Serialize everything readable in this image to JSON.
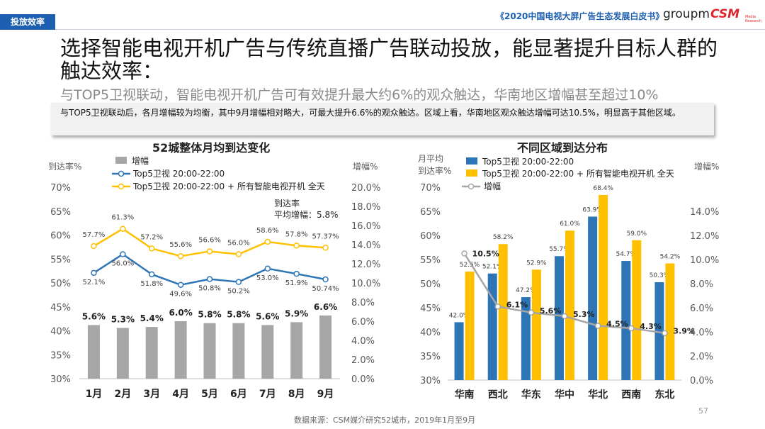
{
  "header": {
    "section_tag": "投放效率",
    "report_title": "《2020中国电视大屏广告生态发展白皮书》",
    "logo_groupm": "groupm",
    "logo_csm": "CSM",
    "logo_csm_sub": "Media Research"
  },
  "title": "选择智能电视开机广告与传统直播广告联动投放，能显著提升目标人群的触达效率：",
  "subtitle": "与TOP5卫视联动，智能电视开机广告可有效提升最大约6%的观众触达，华南地区增幅甚至超过10%",
  "callout": "与TOP5卫视联动后，各月增幅较为均衡，其中9月增幅相对略大，可最大提升6.6%的观众触达。区域上看，华南地区观众触达增幅可达10.5%，明显高于其他区域。",
  "footer": {
    "source": "数据来源：CSM媒介研究52城市，2019年1月至9月",
    "page": "57"
  },
  "colors": {
    "gray": "#a6a6a6",
    "blue": "#2e75b6",
    "gold": "#ffc000",
    "brand": "#1d5fb0"
  },
  "chart_data": [
    {
      "type": "bar+line",
      "title": "52城整体月均到达变化",
      "ylabel_left": "到达率%",
      "ylabel_right": "增幅%",
      "ylim_left": [
        30,
        70
      ],
      "yticks_left": [
        "30%",
        "35%",
        "40%",
        "45%",
        "50%",
        "55%",
        "60%",
        "65%",
        "70%"
      ],
      "ylim_right": [
        0,
        20
      ],
      "yticks_right": [
        "0.0%",
        "2.0%",
        "4.0%",
        "6.0%",
        "8.0%",
        "10.0%",
        "12.0%",
        "14.0%",
        "16.0%",
        "18.0%",
        "20.0%"
      ],
      "categories": [
        "1月",
        "2月",
        "3月",
        "4月",
        "5月",
        "6月",
        "7月",
        "8月",
        "9月"
      ],
      "legend": [
        "增幅",
        "Top5卫视 20:00-22:00",
        "Top5卫视 20:00-22:00 + 所有智能电视开机 全天"
      ],
      "bar_series": {
        "name": "增幅",
        "values": [
          5.6,
          5.3,
          5.4,
          6.0,
          5.8,
          5.8,
          5.6,
          5.9,
          6.6
        ],
        "labels": [
          "5.6%",
          "5.3%",
          "5.4%",
          "6.0%",
          "5.8%",
          "5.8%",
          "5.6%",
          "5.9%",
          "6.6%"
        ]
      },
      "line_series": [
        {
          "name": "Top5卫视 20:00-22:00",
          "values": [
            52.1,
            56.0,
            51.8,
            49.6,
            50.8,
            50.2,
            53.0,
            51.9,
            50.74
          ],
          "labels": [
            "52.1%",
            "56.0%",
            "51.8%",
            "49.6%",
            "50.8%",
            "50.2%",
            "53.0%",
            "51.9%",
            "50.74%"
          ]
        },
        {
          "name": "Top5卫视 20:00-22:00 + 所有智能电视开机 全天",
          "values": [
            57.7,
            61.3,
            57.2,
            55.6,
            56.6,
            56.0,
            58.6,
            57.8,
            57.37
          ],
          "labels": [
            "57.7%",
            "61.3%",
            "57.2%",
            "55.6%",
            "56.6%",
            "56.0%",
            "58.6%",
            "57.8%",
            "57.37%"
          ]
        }
      ],
      "annotation": [
        "到达率",
        "平均增幅：5.8%"
      ]
    },
    {
      "type": "bar+line",
      "title": "不同区域到达分布",
      "ylabel_left": "月平均\n到达率%",
      "ylabel_left_lines": [
        "月平均",
        "到达率%"
      ],
      "ylabel_right": "增幅%",
      "ylim_left": [
        30,
        70
      ],
      "yticks_left": [
        "30%",
        "35%",
        "40%",
        "45%",
        "50%",
        "55%",
        "60%",
        "65%",
        "70%"
      ],
      "ylim_right": [
        0,
        16
      ],
      "yticks_right": [
        "0.0%",
        "2.0%",
        "4.0%",
        "6.0%",
        "8.0%",
        "10.0%",
        "12.0%",
        "14.0%"
      ],
      "categories": [
        "华南",
        "西北",
        "华东",
        "华中",
        "华北",
        "西南",
        "东北"
      ],
      "legend": [
        "Top5卫视 20:00-22:00",
        "Top5卫视 20:00-22:00 + 所有智能电视开机 全天",
        "增幅"
      ],
      "bar_series": [
        {
          "name": "Top5卫视 20:00-22:00",
          "values": [
            42.0,
            52.1,
            47.2,
            55.7,
            63.9,
            54.7,
            50.3
          ],
          "labels": [
            "42.0%",
            "52.1%",
            "47.2%",
            "55.7%",
            "63.9%",
            "54.7%",
            "50.3%"
          ]
        },
        {
          "name": "Top5卫视 20:00-22:00 + 所有智能电视开机 全天",
          "values": [
            52.5,
            58.2,
            52.9,
            61.0,
            68.4,
            59.0,
            54.2
          ],
          "labels": [
            "52.5%",
            "58.2%",
            "52.9%",
            "61.0%",
            "68.4%",
            "59.0%",
            "54.2%"
          ]
        }
      ],
      "line_series": {
        "name": "增幅",
        "values": [
          10.5,
          6.1,
          5.6,
          5.3,
          4.5,
          4.3,
          3.9
        ],
        "labels": [
          "10.5%",
          "6.1%",
          "5.6%",
          "5.3%",
          "4.5%",
          "4.3%",
          "3.9%"
        ]
      }
    }
  ]
}
